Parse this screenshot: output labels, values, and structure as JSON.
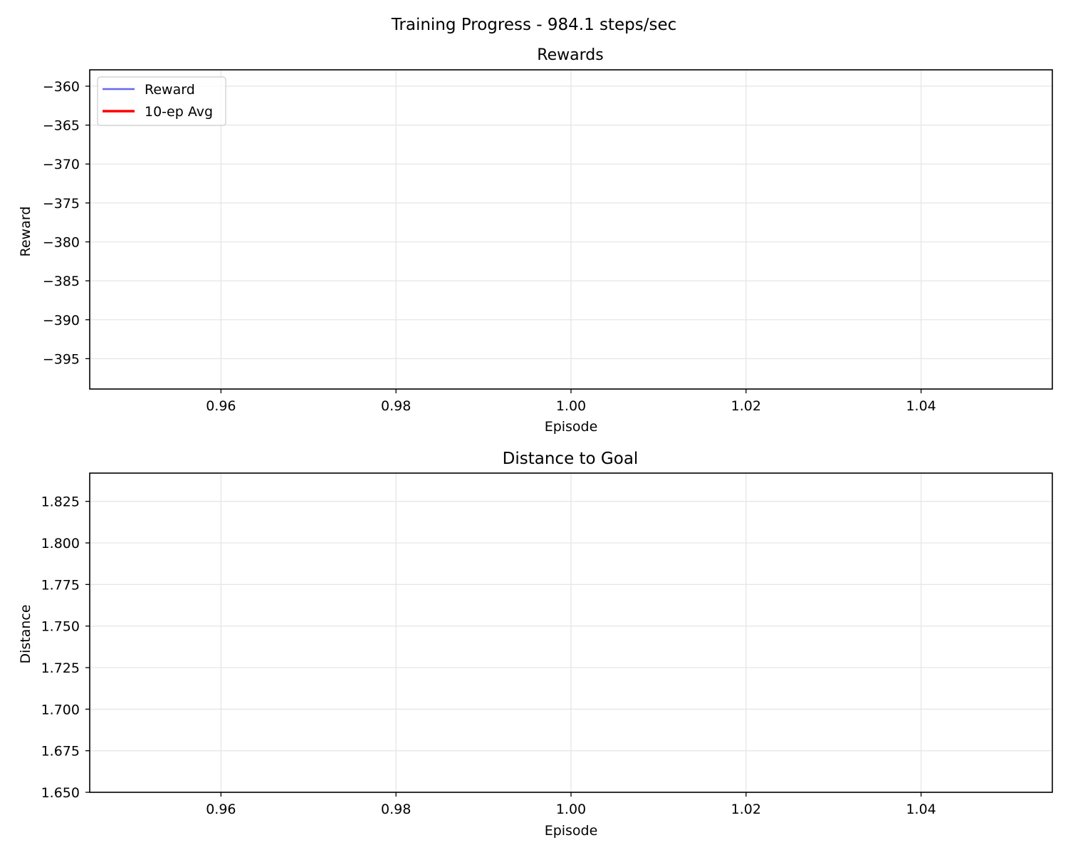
{
  "figure": {
    "title": "Training Progress - 984.1 steps/sec"
  },
  "colors": {
    "reward_line": "#6666ee",
    "avg_line": "#ff0000",
    "grid": "#e6e6e6",
    "axis": "#000000"
  },
  "chart_data": [
    {
      "type": "line",
      "title": "Rewards",
      "xlabel": "Episode",
      "ylabel": "Reward",
      "xlim": [
        0.945,
        1.055
      ],
      "ylim": [
        -398.9,
        -357.9
      ],
      "xticks": [
        0.96,
        0.98,
        1.0,
        1.02,
        1.04
      ],
      "xtick_labels": [
        "0.96",
        "0.98",
        "1.00",
        "1.02",
        "1.04"
      ],
      "yticks": [
        -360,
        -365,
        -370,
        -375,
        -380,
        -385,
        -390,
        -395
      ],
      "ytick_labels": [
        "−360",
        "−365",
        "−370",
        "−375",
        "−380",
        "−385",
        "−390",
        "−395"
      ],
      "grid": true,
      "legend": {
        "placement": "upper-left",
        "entries": [
          {
            "label": "Reward",
            "color": "#6666ee"
          },
          {
            "label": "10-ep Avg",
            "color": "#ff0000"
          }
        ]
      },
      "series": [
        {
          "name": "Reward",
          "x": [],
          "values": []
        },
        {
          "name": "10-ep Avg",
          "x": [],
          "values": []
        }
      ]
    },
    {
      "type": "line",
      "title": "Distance to Goal",
      "xlabel": "Episode",
      "ylabel": "Distance",
      "xlim": [
        0.945,
        1.055
      ],
      "ylim": [
        1.65,
        1.842
      ],
      "xticks": [
        0.96,
        0.98,
        1.0,
        1.02,
        1.04
      ],
      "xtick_labels": [
        "0.96",
        "0.98",
        "1.00",
        "1.02",
        "1.04"
      ],
      "yticks": [
        1.65,
        1.675,
        1.7,
        1.725,
        1.75,
        1.775,
        1.8,
        1.825
      ],
      "ytick_labels": [
        "1.650",
        "1.675",
        "1.700",
        "1.725",
        "1.750",
        "1.775",
        "1.800",
        "1.825"
      ],
      "grid": true,
      "series": [
        {
          "name": "Distance",
          "x": [],
          "values": []
        }
      ]
    }
  ]
}
